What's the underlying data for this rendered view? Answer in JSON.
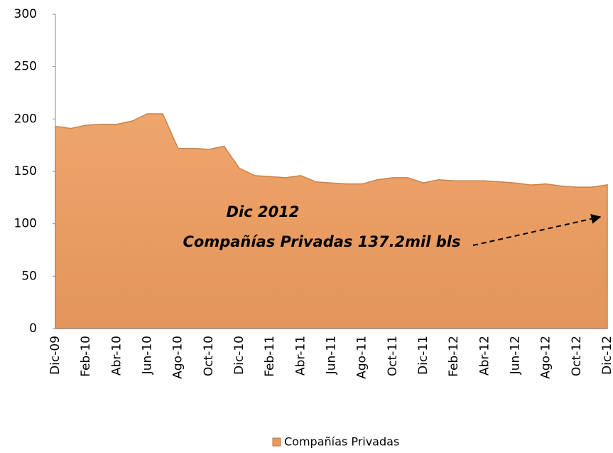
{
  "chart_data": {
    "type": "area",
    "categories": [
      "Dic-09",
      null,
      "Feb-10",
      null,
      "Abr-10",
      null,
      "Jun-10",
      null,
      "Ago-10",
      null,
      "Oct-10",
      null,
      "Dic-10",
      null,
      "Feb-11",
      null,
      "Abr-11",
      null,
      "Jun-11",
      null,
      "Ago-11",
      null,
      "Oct-11",
      null,
      "Dic-11",
      null,
      "Feb-12",
      null,
      "Abr-12",
      null,
      "Jun-12",
      null,
      "Ago-12",
      null,
      "Oct-12",
      null,
      "Dic-12"
    ],
    "series": [
      {
        "name": "Compañías Privadas",
        "color": "#e8995e",
        "values": [
          193,
          191,
          194,
          195,
          195,
          198,
          205,
          205,
          172,
          172,
          171,
          174,
          153,
          146,
          145,
          144,
          146,
          140,
          139,
          138,
          138,
          142,
          144,
          144,
          139,
          142,
          141,
          141,
          141,
          140,
          139,
          137,
          138,
          136,
          135,
          135,
          137.2
        ]
      }
    ],
    "ylim": [
      0,
      300
    ],
    "yticks": [
      0,
      50,
      100,
      150,
      200,
      250,
      300
    ],
    "annotation": [
      "Dic 2012",
      "Compañías Privadas 137.2mil bls"
    ],
    "legend": "bottom"
  }
}
